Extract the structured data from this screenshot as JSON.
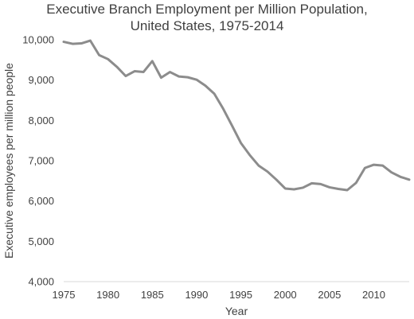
{
  "chart_data": {
    "type": "line",
    "title_lines": [
      "Executive Branch Employment per Million Population,",
      "United States, 1975-2014"
    ],
    "xlabel": "Year",
    "ylabel": "Executive employees per million people",
    "xlim": [
      1975,
      2014
    ],
    "ylim": [
      4000,
      10000
    ],
    "x_ticks": [
      1975,
      1980,
      1985,
      1990,
      1995,
      2000,
      2005,
      2010
    ],
    "y_ticks": [
      4000,
      5000,
      6000,
      7000,
      8000,
      9000,
      10000
    ],
    "y_tick_labels": [
      "4,000",
      "5,000",
      "6,000",
      "7,000",
      "8,000",
      "9,000",
      "10,000"
    ],
    "x_tick_labels": [
      "1975",
      "1980",
      "1985",
      "1990",
      "1995",
      "2000",
      "2005",
      "2010"
    ],
    "grid": false,
    "line_color": "#8c8c8c",
    "series": [
      {
        "x": [
          1975,
          1976,
          1977,
          1978,
          1979,
          1980,
          1981,
          1982,
          1983,
          1984,
          1985,
          1986,
          1987,
          1988,
          1989,
          1990,
          1991,
          1992,
          1993,
          1994,
          1995,
          1996,
          1997,
          1998,
          1999,
          2000,
          2001,
          2002,
          2003,
          2004,
          2005,
          2006,
          2007,
          2008,
          2009,
          2010,
          2011,
          2012,
          2013,
          2014
        ],
        "values": [
          9950,
          9900,
          9910,
          9980,
          9620,
          9520,
          9330,
          9100,
          9220,
          9200,
          9470,
          9060,
          9200,
          9090,
          9070,
          9010,
          8860,
          8660,
          8290,
          7870,
          7440,
          7140,
          6880,
          6730,
          6530,
          6310,
          6290,
          6330,
          6440,
          6420,
          6340,
          6300,
          6270,
          6450,
          6820,
          6900,
          6880,
          6710,
          6600,
          6530
        ]
      }
    ]
  }
}
